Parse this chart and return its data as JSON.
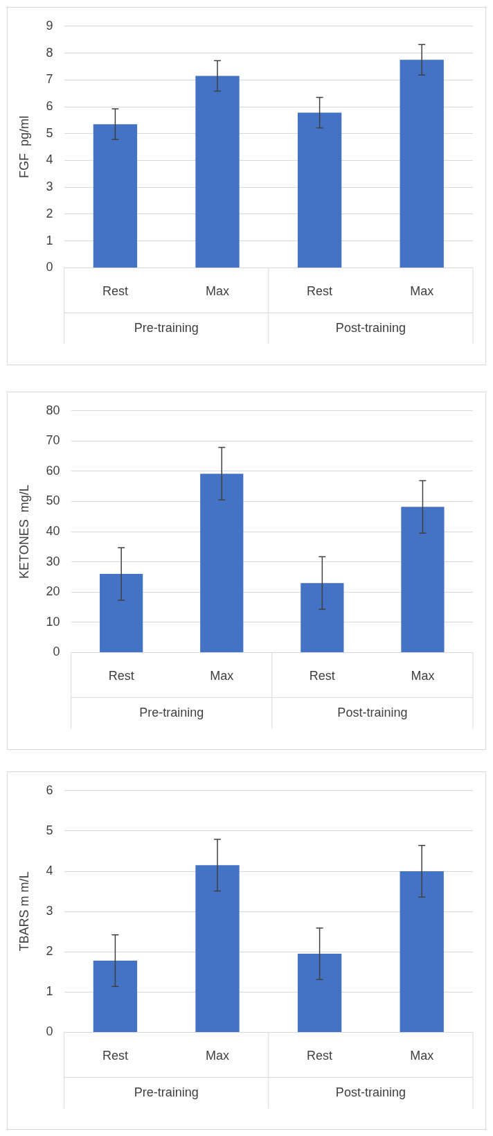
{
  "chart_data": [
    {
      "type": "bar",
      "ylabel": "FGF  pg/ml",
      "categories": [
        "Rest",
        "Max",
        "Rest",
        "Max"
      ],
      "values": [
        5.35,
        7.15,
        5.78,
        7.75
      ],
      "errors": [
        0.57,
        0.57,
        0.57,
        0.57
      ],
      "color": "#4472c4",
      "ylim": [
        0,
        9
      ],
      "yticks": [
        0,
        1,
        2,
        3,
        4,
        5,
        6,
        7,
        8,
        9
      ],
      "grid": "y",
      "annotations": [
        "Pre-training",
        "Post-training"
      ]
    },
    {
      "type": "bar",
      "ylabel": "KETONES  mg/L",
      "categories": [
        "Rest",
        "Max",
        "Rest",
        "Max"
      ],
      "values": [
        26,
        59.2,
        23,
        48.2
      ],
      "errors": [
        8.7,
        8.7,
        8.7,
        8.7
      ],
      "color": "#4472c4",
      "ylim": [
        0,
        80
      ],
      "yticks": [
        0,
        10,
        20,
        30,
        40,
        50,
        60,
        70,
        80
      ],
      "grid": "y",
      "annotations": [
        "Pre-training",
        "Post-training"
      ]
    },
    {
      "type": "bar",
      "ylabel": "TBARS m m/L",
      "categories": [
        "Rest",
        "Max",
        "Rest",
        "Max"
      ],
      "values": [
        1.78,
        4.15,
        1.95,
        4.0
      ],
      "errors": [
        0.64,
        0.64,
        0.64,
        0.64
      ],
      "color": "#4472c4",
      "ylim": [
        0,
        6
      ],
      "yticks": [
        0,
        1,
        2,
        3,
        4,
        5,
        6
      ],
      "grid": "y",
      "annotations": [
        "Pre-training",
        "Post-training"
      ]
    }
  ]
}
